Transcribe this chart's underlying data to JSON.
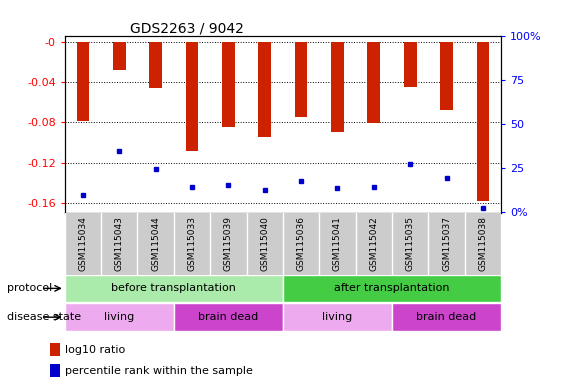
{
  "title": "GDS2263 / 9042",
  "samples": [
    "GSM115034",
    "GSM115043",
    "GSM115044",
    "GSM115033",
    "GSM115039",
    "GSM115040",
    "GSM115036",
    "GSM115041",
    "GSM115042",
    "GSM115035",
    "GSM115037",
    "GSM115038"
  ],
  "log10_ratios": [
    -0.079,
    -0.028,
    -0.046,
    -0.108,
    -0.085,
    -0.095,
    -0.075,
    -0.09,
    -0.081,
    -0.045,
    -0.068,
    -0.158
  ],
  "percentile_ranks": [
    10,
    35,
    25,
    15,
    16,
    13,
    18,
    14,
    15,
    28,
    20,
    3
  ],
  "ylim_left": [
    -0.17,
    0.005
  ],
  "ylim_right": [
    -0.5,
    100
  ],
  "yticks_left": [
    0.0,
    -0.04,
    -0.08,
    -0.12,
    -0.16
  ],
  "yticks_right": [
    0,
    25,
    50,
    75,
    100
  ],
  "ytick_labels_left": [
    "-0",
    "-0.04",
    "-0.08",
    "-0.12",
    "-0.16"
  ],
  "ytick_labels_right": [
    "0%",
    "25",
    "50",
    "75",
    "100%"
  ],
  "bar_color": "#cc2200",
  "dot_color": "#0000cc",
  "background_color": "#ffffff",
  "protocol_before": {
    "label": "before transplantation",
    "color": "#aaeaaa",
    "start": 0,
    "end": 6
  },
  "protocol_after": {
    "label": "after transplantation",
    "color": "#44cc44",
    "start": 6,
    "end": 12
  },
  "disease_living1": {
    "label": "living",
    "color": "#eeaaee",
    "start": 0,
    "end": 3
  },
  "disease_braindead1": {
    "label": "brain dead",
    "color": "#cc44cc",
    "start": 3,
    "end": 6
  },
  "disease_living2": {
    "label": "living",
    "color": "#eeaaee",
    "start": 6,
    "end": 9
  },
  "disease_braindead2": {
    "label": "brain dead",
    "color": "#cc44cc",
    "start": 9,
    "end": 12
  },
  "legend_red_label": "log10 ratio",
  "legend_blue_label": "percentile rank within the sample",
  "xtick_bg_color": "#cccccc",
  "bar_width": 0.35
}
